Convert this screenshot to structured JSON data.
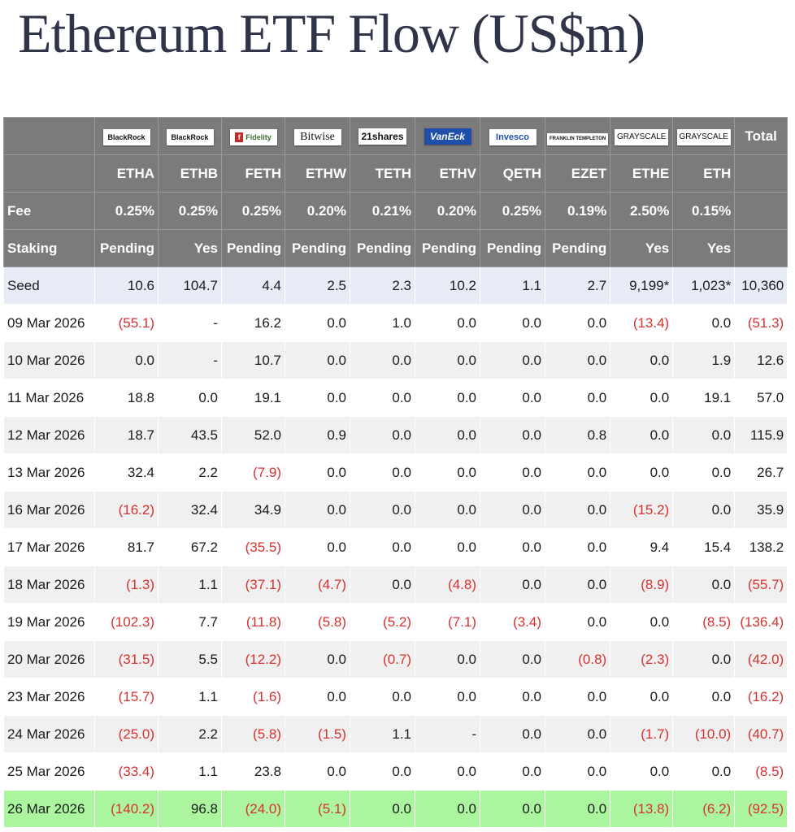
{
  "title": "Ethereum ETF Flow (US$m)",
  "issuers": [
    "BlackRock",
    "BlackRock",
    "Fidelity",
    "Bitwise",
    "21shares",
    "VanEck",
    "Invesco",
    "FRANKLIN TEMPLETON",
    "GRAYSCALE",
    "GRAYSCALE"
  ],
  "total_label": "Total",
  "tickers": [
    "ETHA",
    "ETHB",
    "FETH",
    "ETHW",
    "TETH",
    "ETHV",
    "QETH",
    "EZET",
    "ETHE",
    "ETH"
  ],
  "fee": {
    "label": "Fee",
    "values": [
      "0.25%",
      "0.25%",
      "0.25%",
      "0.20%",
      "0.21%",
      "0.20%",
      "0.25%",
      "0.19%",
      "2.50%",
      "0.15%"
    ]
  },
  "staking": {
    "label": "Staking",
    "values": [
      "Pending",
      "Yes",
      "Pending",
      "Pending",
      "Pending",
      "Pending",
      "Pending",
      "Pending",
      "Yes",
      "Yes"
    ]
  },
  "rows": [
    {
      "date": "Seed",
      "cells": [
        "10.6",
        "104.7",
        "4.4",
        "2.5",
        "2.3",
        "10.2",
        "1.1",
        "2.7",
        "9,199*",
        "1,023*",
        "10,360"
      ]
    },
    {
      "date": "09 Mar 2026",
      "cells": [
        "(55.1)",
        "-",
        "16.2",
        "0.0",
        "1.0",
        "0.0",
        "0.0",
        "0.0",
        "(13.4)",
        "0.0",
        "(51.3)"
      ]
    },
    {
      "date": "10 Mar 2026",
      "cells": [
        "0.0",
        "-",
        "10.7",
        "0.0",
        "0.0",
        "0.0",
        "0.0",
        "0.0",
        "0.0",
        "1.9",
        "12.6"
      ]
    },
    {
      "date": "11 Mar 2026",
      "cells": [
        "18.8",
        "0.0",
        "19.1",
        "0.0",
        "0.0",
        "0.0",
        "0.0",
        "0.0",
        "0.0",
        "19.1",
        "57.0"
      ]
    },
    {
      "date": "12 Mar 2026",
      "cells": [
        "18.7",
        "43.5",
        "52.0",
        "0.9",
        "0.0",
        "0.0",
        "0.0",
        "0.8",
        "0.0",
        "0.0",
        "115.9"
      ]
    },
    {
      "date": "13 Mar 2026",
      "cells": [
        "32.4",
        "2.2",
        "(7.9)",
        "0.0",
        "0.0",
        "0.0",
        "0.0",
        "0.0",
        "0.0",
        "0.0",
        "26.7"
      ]
    },
    {
      "date": "16 Mar 2026",
      "cells": [
        "(16.2)",
        "32.4",
        "34.9",
        "0.0",
        "0.0",
        "0.0",
        "0.0",
        "0.0",
        "(15.2)",
        "0.0",
        "35.9"
      ]
    },
    {
      "date": "17 Mar 2026",
      "cells": [
        "81.7",
        "67.2",
        "(35.5)",
        "0.0",
        "0.0",
        "0.0",
        "0.0",
        "0.0",
        "9.4",
        "15.4",
        "138.2"
      ]
    },
    {
      "date": "18 Mar 2026",
      "cells": [
        "(1.3)",
        "1.1",
        "(37.1)",
        "(4.7)",
        "0.0",
        "(4.8)",
        "0.0",
        "0.0",
        "(8.9)",
        "0.0",
        "(55.7)"
      ]
    },
    {
      "date": "19 Mar 2026",
      "cells": [
        "(102.3)",
        "7.7",
        "(11.8)",
        "(5.8)",
        "(5.2)",
        "(7.1)",
        "(3.4)",
        "0.0",
        "0.0",
        "(8.5)",
        "(136.4)"
      ]
    },
    {
      "date": "20 Mar 2026",
      "cells": [
        "(31.5)",
        "5.5",
        "(12.2)",
        "0.0",
        "(0.7)",
        "0.0",
        "0.0",
        "(0.8)",
        "(2.3)",
        "0.0",
        "(42.0)"
      ]
    },
    {
      "date": "23 Mar 2026",
      "cells": [
        "(15.7)",
        "1.1",
        "(1.6)",
        "0.0",
        "0.0",
        "0.0",
        "0.0",
        "0.0",
        "0.0",
        "0.0",
        "(16.2)"
      ]
    },
    {
      "date": "24 Mar 2026",
      "cells": [
        "(25.0)",
        "2.2",
        "(5.8)",
        "(1.5)",
        "1.1",
        "-",
        "0.0",
        "0.0",
        "(1.7)",
        "(10.0)",
        "(40.7)"
      ]
    },
    {
      "date": "25 Mar 2026",
      "cells": [
        "(33.4)",
        "1.1",
        "23.8",
        "0.0",
        "0.0",
        "0.0",
        "0.0",
        "0.0",
        "0.0",
        "0.0",
        "(8.5)"
      ]
    },
    {
      "date": "26 Mar 2026",
      "cells": [
        "(140.2)",
        "96.8",
        "(24.0)",
        "(5.1)",
        "0.0",
        "0.0",
        "0.0",
        "0.0",
        "(13.8)",
        "(6.2)",
        "(92.5)"
      ]
    }
  ],
  "colors": {
    "header_bg": "#7b7b7b",
    "seed_bg": "#e7ebf6",
    "latest_bg": "#aaf59e",
    "negative": "#d9302f"
  }
}
